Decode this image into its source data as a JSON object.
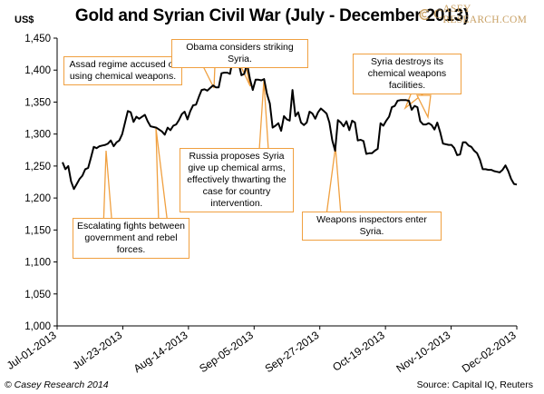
{
  "header": {
    "title": "Gold and Syrian Civil War (July - December 2013)",
    "unit": "US$",
    "brand_prefix": "C",
    "brand_name": "ASEY RESEARCH.COM"
  },
  "footer": {
    "copyright": "© Casey Research 2014",
    "source": "Source: Capital IQ, Reuters"
  },
  "callouts": {
    "assad": "Assad regime accused of using chemical weapons.",
    "obama": "Obama considers striking Syria.",
    "syria_destroys": "Syria destroys its chemical weapons facilities.",
    "russia": "Russia proposes Syria give up chemical arms, effectively thwarting the case for country intervention.",
    "escalating": "Escalating fights between government and rebel forces.",
    "inspectors": "Weapons inspectors enter Syria."
  },
  "colors": {
    "line": "#000000",
    "callout_border": "#f0a040",
    "brand": "#c8a064"
  },
  "chart_data": {
    "type": "line",
    "title": "Gold and Syrian Civil War (July - December 2013)",
    "ylabel": "US$",
    "ylim": [
      1000,
      1450
    ],
    "yticks": [
      "1,000",
      "1,050",
      "1,100",
      "1,150",
      "1,200",
      "1,250",
      "1,300",
      "1,350",
      "1,400",
      "1,450"
    ],
    "xticks": [
      "Jul-01-2013",
      "Jul-23-2013",
      "Aug-14-2013",
      "Sep-05-2013",
      "Sep-27-2013",
      "Oct-19-2013",
      "Nov-10-2013",
      "Dec-02-2013"
    ],
    "grid": false,
    "series": [
      {
        "values": [
          1256,
          1245,
          1250,
          1226,
          1214,
          1222,
          1230,
          1235,
          1245,
          1247,
          1263,
          1280,
          1278,
          1281,
          1282,
          1283,
          1285,
          1290,
          1281,
          1287,
          1290,
          1300,
          1318,
          1336,
          1334,
          1319,
          1327,
          1324,
          1327,
          1330,
          1320,
          1312,
          1311,
          1310,
          1307,
          1304,
          1299,
          1310,
          1306,
          1313,
          1315,
          1322,
          1331,
          1335,
          1323,
          1336,
          1345,
          1346,
          1358,
          1369,
          1370,
          1368,
          1372,
          1376,
          1373,
          1373,
          1395,
          1396,
          1396,
          1394,
          1419,
          1418,
          1412,
          1392,
          1394,
          1410,
          1386,
          1369,
          1385,
          1385,
          1384,
          1386,
          1363,
          1348,
          1310,
          1313,
          1317,
          1305,
          1328,
          1323,
          1321,
          1369,
          1328,
          1334,
          1318,
          1314,
          1318,
          1335,
          1332,
          1324,
          1334,
          1340,
          1336,
          1332,
          1318,
          1290,
          1274,
          1322,
          1318,
          1312,
          1320,
          1306,
          1321,
          1318,
          1290,
          1291,
          1289,
          1269,
          1270,
          1270,
          1274,
          1277,
          1317,
          1313,
          1321,
          1327,
          1342,
          1344,
          1352,
          1353,
          1353,
          1353,
          1352,
          1338,
          1344,
          1342,
          1320,
          1315,
          1315,
          1317,
          1314,
          1307,
          1318,
          1303,
          1285,
          1284,
          1283,
          1283,
          1278,
          1267,
          1268,
          1287,
          1287,
          1282,
          1280,
          1274,
          1270,
          1260,
          1245,
          1245,
          1244,
          1244,
          1242,
          1241,
          1240,
          1244,
          1251,
          1242,
          1230,
          1222,
          1221
        ]
      }
    ]
  }
}
